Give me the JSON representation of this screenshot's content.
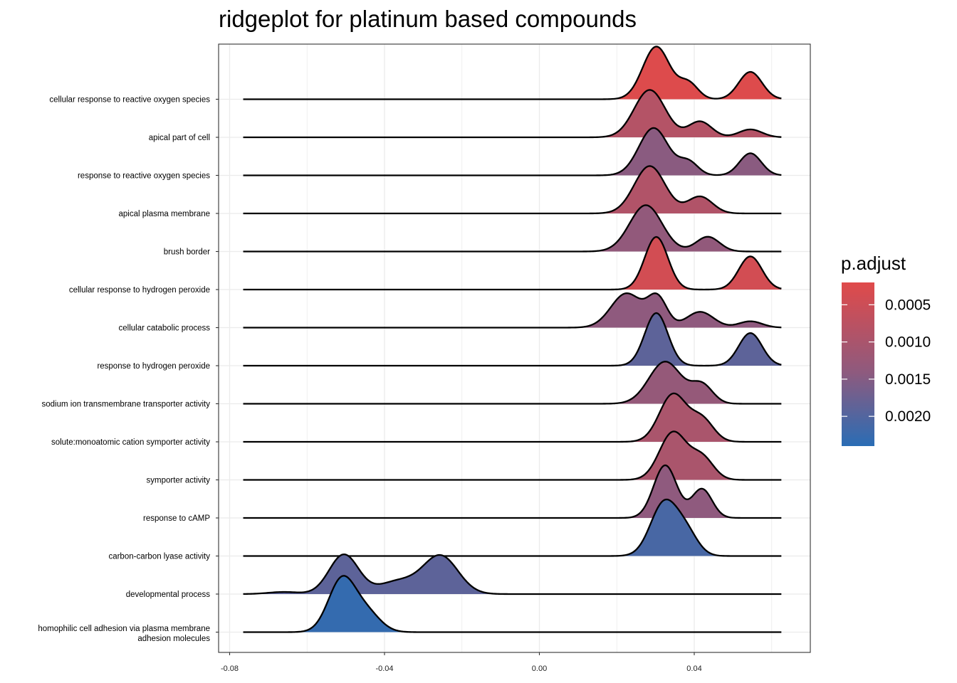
{
  "chart_data": {
    "type": "ridgeline",
    "title": "ridgeplot for platinum based compounds",
    "xlabel": "",
    "ylabel": "",
    "xlim": [
      -0.082,
      0.0695
    ],
    "x_ticks": [
      -0.08,
      -0.04,
      0.0,
      0.04
    ],
    "x_tick_labels": [
      "-0.08",
      "-0.04",
      "0.00",
      "0.04"
    ],
    "grid": true,
    "legend": {
      "title": "p.adjust",
      "position": "right",
      "range": [
        0.0002,
        0.0024
      ],
      "ticks": [
        0.0005,
        0.001,
        0.0015,
        0.002
      ],
      "tick_labels": [
        "0.0005",
        "0.0010",
        "0.0015",
        "0.0020"
      ],
      "low_color": "#e04a4a",
      "high_color": "#2a6db5"
    },
    "series": [
      {
        "name": "cellular response to reactive oxygen species",
        "p_adjust": 0.00025,
        "peaks": [
          [
            0.0302,
            0.0035,
            1.0
          ],
          [
            0.0385,
            0.0025,
            0.3
          ],
          [
            0.0545,
            0.003,
            0.52
          ]
        ]
      },
      {
        "name": "apical part of cell",
        "p_adjust": 0.00085,
        "peaks": [
          [
            0.0285,
            0.004,
            0.9
          ],
          [
            0.0415,
            0.003,
            0.3
          ],
          [
            0.0545,
            0.003,
            0.15
          ]
        ]
      },
      {
        "name": "response to reactive oxygen species",
        "p_adjust": 0.00145,
        "peaks": [
          [
            0.0295,
            0.0038,
            0.9
          ],
          [
            0.0385,
            0.0025,
            0.25
          ],
          [
            0.0545,
            0.0028,
            0.42
          ]
        ]
      },
      {
        "name": "apical plasma membrane",
        "p_adjust": 0.0009,
        "peaks": [
          [
            0.0285,
            0.004,
            0.9
          ],
          [
            0.0415,
            0.0032,
            0.32
          ]
        ]
      },
      {
        "name": "brush border",
        "p_adjust": 0.00135,
        "peaks": [
          [
            0.0275,
            0.0042,
            0.88
          ],
          [
            0.0435,
            0.003,
            0.28
          ]
        ]
      },
      {
        "name": "cellular response to hydrogen peroxide",
        "p_adjust": 0.0004,
        "peaks": [
          [
            0.0302,
            0.003,
            1.0
          ],
          [
            0.0545,
            0.003,
            0.63
          ]
        ]
      },
      {
        "name": "cellular catabolic process",
        "p_adjust": 0.0014,
        "peaks": [
          [
            0.0225,
            0.004,
            0.65
          ],
          [
            0.0305,
            0.0025,
            0.55
          ],
          [
            0.0415,
            0.0035,
            0.3
          ],
          [
            0.0545,
            0.003,
            0.12
          ]
        ]
      },
      {
        "name": "response to hydrogen peroxide",
        "p_adjust": 0.0019,
        "peaks": [
          [
            0.0302,
            0.003,
            1.0
          ],
          [
            0.0545,
            0.003,
            0.62
          ]
        ]
      },
      {
        "name": "sodium ion transmembrane transporter activity",
        "p_adjust": 0.0013,
        "peaks": [
          [
            0.0325,
            0.0042,
            0.8
          ],
          [
            0.042,
            0.0028,
            0.35
          ]
        ]
      },
      {
        "name": "solute:monoatomic cation symporter activity",
        "p_adjust": 0.001,
        "peaks": [
          [
            0.0345,
            0.0035,
            0.9
          ],
          [
            0.042,
            0.003,
            0.42
          ]
        ]
      },
      {
        "name": "symporter activity",
        "p_adjust": 0.001,
        "peaks": [
          [
            0.0345,
            0.0035,
            0.9
          ],
          [
            0.042,
            0.003,
            0.42
          ]
        ]
      },
      {
        "name": "response to cAMP",
        "p_adjust": 0.0014,
        "peaks": [
          [
            0.0325,
            0.003,
            1.0
          ],
          [
            0.042,
            0.0026,
            0.55
          ]
        ]
      },
      {
        "name": "carbon-carbon lyase activity",
        "p_adjust": 0.0021,
        "peaks": [
          [
            0.0322,
            0.0035,
            1.0
          ],
          [
            0.038,
            0.003,
            0.4
          ]
        ]
      },
      {
        "name": "developmental process",
        "p_adjust": 0.0019,
        "peaks": [
          [
            -0.0505,
            0.0038,
            0.75
          ],
          [
            -0.0255,
            0.0045,
            0.72
          ],
          [
            -0.0365,
            0.005,
            0.24
          ],
          [
            -0.066,
            0.004,
            0.04
          ]
        ]
      },
      {
        "name": "homophilic cell adhesion via plasma membrane adhesion molecules",
        "p_adjust": 0.0023,
        "peaks": [
          [
            -0.051,
            0.0035,
            1.0
          ],
          [
            -0.0445,
            0.0035,
            0.35
          ]
        ]
      }
    ]
  }
}
